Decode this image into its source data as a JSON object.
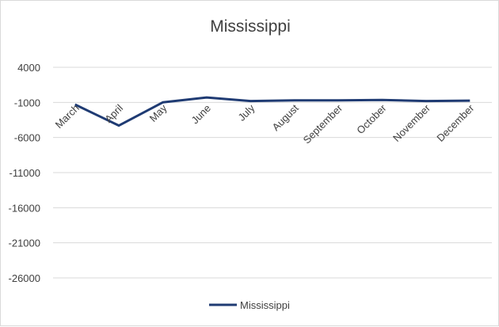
{
  "chart_data": {
    "type": "line",
    "title": "Mississippi",
    "xlabel": "",
    "ylabel": "",
    "categories": [
      "March",
      "April",
      "May",
      "June",
      "July",
      "August",
      "September",
      "October",
      "November",
      "December"
    ],
    "series": [
      {
        "name": "Mississippi",
        "color": "#1f3b73",
        "values": [
          -1300,
          -4300,
          -1000,
          -300,
          -800,
          -700,
          -700,
          -650,
          -800,
          -750
        ]
      }
    ],
    "yticks": [
      4000,
      -1000,
      -6000,
      -11000,
      -16000,
      -21000,
      -26000
    ],
    "ytick_labels": [
      "4000",
      "-1000",
      "-6000",
      "-11000",
      "-16000",
      "-21000",
      "-26000"
    ],
    "ylim": [
      -26000,
      4000
    ],
    "grid": true,
    "legend": "bottom"
  }
}
